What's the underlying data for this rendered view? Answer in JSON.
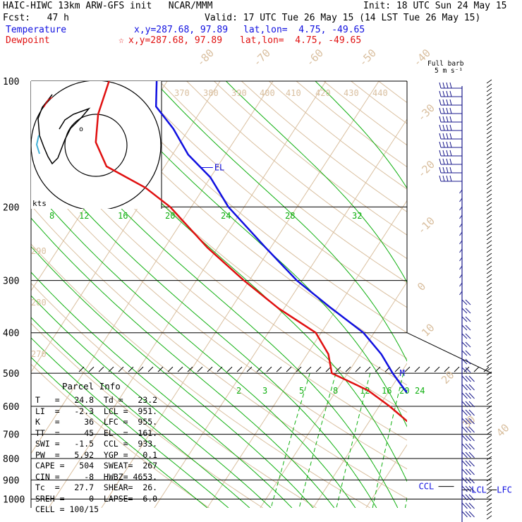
{
  "header": {
    "model_line": "HAIC-HIWC 13km ARW-GFS init   NCAR/MMM",
    "init_line": "Init: 18 UTC Sun 24 May 15",
    "fcst_line": "Fcst:   47 h",
    "valid_line": "Valid: 17 UTC Tue 26 May 15 (14 LST Tue 26 May 15)",
    "temp_label": "Temperature",
    "temp_xy": "x,y=287.68, 97.89",
    "temp_latlon": "lat,lon=  4.75, -49.65",
    "dew_label": "Dewpoint",
    "dew_xy": "x,y=287.68, 97.89",
    "dew_latlon": "lat,lon=  4.75, -49.65",
    "barb_title_1": "Full barb",
    "barb_title_2": "5 m s⁻¹"
  },
  "colors": {
    "temperature": "#1010e0",
    "dewpoint": "#e01010",
    "isotherm": "#d9bf9f",
    "mixing_ratio": "#10b010",
    "barb": "#1a1a8c"
  },
  "chart_data": {
    "type": "line",
    "title": "Skew-T log-P sounding",
    "y_axis": {
      "label": "",
      "scale": "log",
      "ticks": [
        100,
        200,
        300,
        400,
        500,
        600,
        700,
        800,
        900,
        1000
      ]
    },
    "isotherm_labels": [
      "-80",
      "-70",
      "-60",
      "-50",
      "-40",
      "-30",
      "-20",
      "-10",
      "0",
      "10",
      "20",
      "30",
      "40"
    ],
    "theta_labels": [
      "370",
      "380",
      "390",
      "400",
      "410",
      "420",
      "430",
      "440",
      "290",
      "280",
      "270"
    ],
    "mixing_ratio_labels_upper": [
      "8",
      "12",
      "16",
      "20",
      "24",
      "28",
      "32"
    ],
    "mixing_ratio_labels_lower": [
      "2",
      "3",
      "5",
      "8",
      "12",
      "16",
      "20",
      "24"
    ],
    "series": [
      {
        "name": "Temperature",
        "points": [
          [
            100,
            -82
          ],
          [
            115,
            -79
          ],
          [
            130,
            -73
          ],
          [
            150,
            -67
          ],
          [
            170,
            -60
          ],
          [
            200,
            -53
          ],
          [
            250,
            -41
          ],
          [
            300,
            -31
          ],
          [
            350,
            -21
          ],
          [
            400,
            -12
          ],
          [
            450,
            -6
          ],
          [
            500,
            -1.5
          ],
          [
            550,
            3
          ],
          [
            600,
            8
          ],
          [
            650,
            11.5
          ],
          [
            700,
            15
          ],
          [
            750,
            17
          ],
          [
            800,
            19
          ],
          [
            850,
            21
          ],
          [
            900,
            23
          ],
          [
            950,
            24.5
          ],
          [
            975,
            24.8
          ]
        ]
      },
      {
        "name": "Dewpoint",
        "points": [
          [
            100,
            -91
          ],
          [
            120,
            -89
          ],
          [
            140,
            -86
          ],
          [
            160,
            -81
          ],
          [
            180,
            -71
          ],
          [
            200,
            -64
          ],
          [
            250,
            -52
          ],
          [
            300,
            -41
          ],
          [
            350,
            -31
          ],
          [
            400,
            -21
          ],
          [
            450,
            -16
          ],
          [
            500,
            -13
          ],
          [
            550,
            -4
          ],
          [
            600,
            2
          ],
          [
            650,
            7
          ],
          [
            700,
            12
          ],
          [
            750,
            16
          ],
          [
            800,
            18
          ],
          [
            850,
            20.5
          ],
          [
            900,
            23
          ],
          [
            950,
            23
          ],
          [
            975,
            23.2
          ]
        ]
      }
    ],
    "annotations": [
      "EL",
      "M",
      "CCL",
      "LCL",
      "LFC"
    ]
  },
  "hodograph": {
    "units_label": "kts"
  },
  "parcel_info": {
    "title": "Parcel Info",
    "rows": [
      "T   =   24.8  Td =   23.2",
      "LI  =   -2.3  LCL =  951.",
      "K   =     36  LFC =  955.",
      "TT  =     45  EL  =  161.",
      "SWI =   -1.5  CCL =  933.",
      "PW  =   5.92  YGP =   0.1",
      "CAPE =   504  SWEAT=  267",
      "CIN =     -8  HWBZ= 4653.",
      "Tc  =   27.7  SHEAR=  26.",
      "SREH =     0  LAPSE=  6.0",
      "CELL = 100/15"
    ]
  }
}
